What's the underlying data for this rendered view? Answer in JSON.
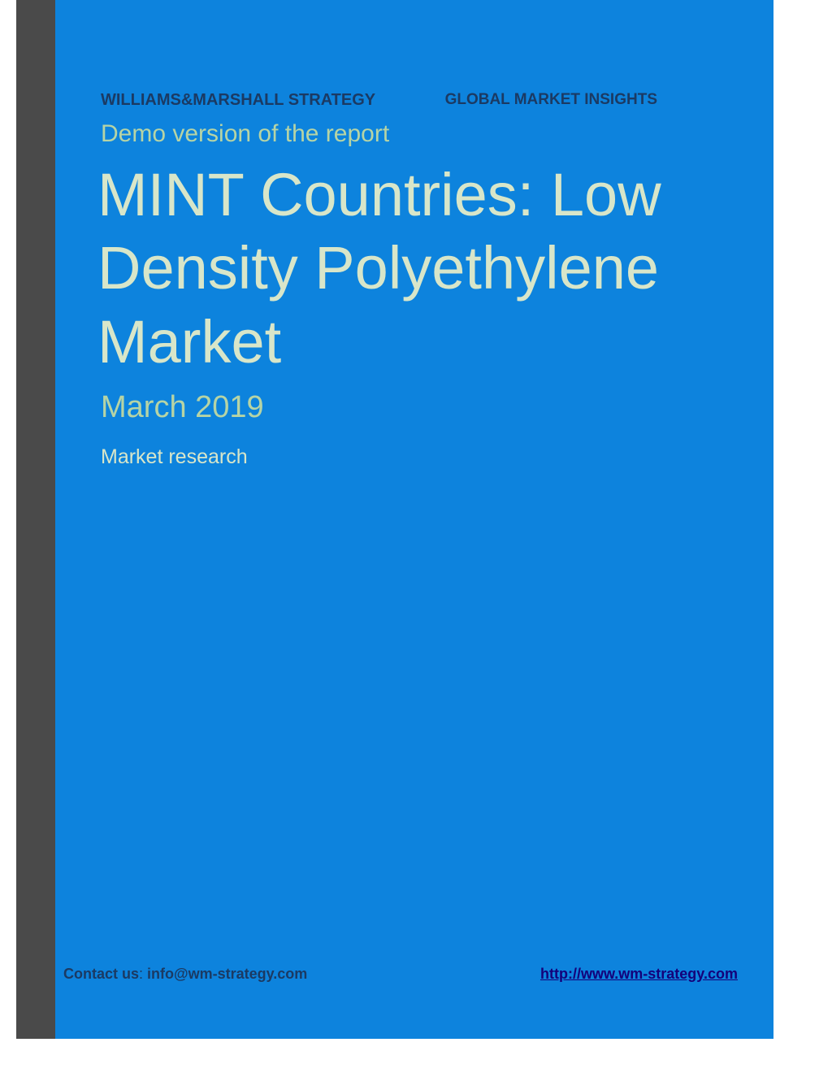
{
  "colors": {
    "blue_panel": "#0d83dd",
    "left_strip": "#4a4a4a",
    "header_text": "#1b3a63",
    "light_green": "#b6d4a5",
    "pale_green": "#d8e6c9",
    "link": "#14007a",
    "page_bg": "#ffffff"
  },
  "header": {
    "company": "WILLIAMS&MARSHALL STRATEGY",
    "insights": "GLOBAL MARKET INSIGHTS"
  },
  "demo_label": "Demo version of the report",
  "title": "MINT Countries: Low Density Polyethylene Market",
  "date": "March 2019",
  "subtitle": "Market research",
  "footer": {
    "contact_label": "Contact us",
    "colon": ": ",
    "email": "info@wm-strategy.com",
    "url": "http://www.wm-strategy.com"
  }
}
